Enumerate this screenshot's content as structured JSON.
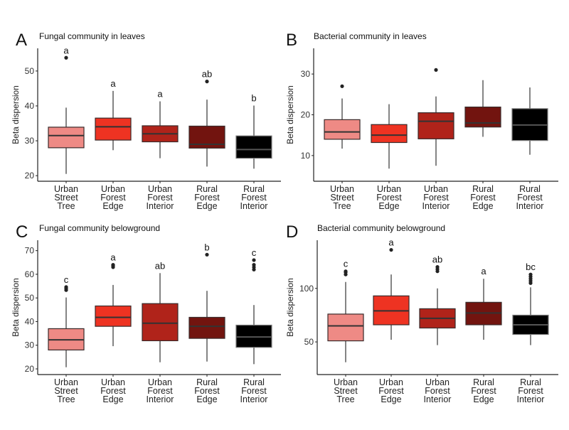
{
  "chart_data": [
    {
      "type": "box",
      "panel_label": "A",
      "title": "Fungal community in leaves",
      "ylabel": "Beta dispersion",
      "xlabel": "",
      "ylim": [
        18.4,
        56.5
      ],
      "yticks": [
        20,
        30,
        40,
        50
      ],
      "categories": [
        [
          "Urban",
          "Street",
          "Tree"
        ],
        [
          "Urban",
          "Forest",
          "Edge"
        ],
        [
          "Urban",
          "Forest",
          "Interior"
        ],
        [
          "Rural",
          "Forest",
          "Edge"
        ],
        [
          "Rural",
          "Forest",
          "Interior"
        ]
      ],
      "colors": [
        "#EE8A85",
        "#EE3322",
        "#B0231A",
        "#72140F",
        "#000000"
      ],
      "boxes": [
        {
          "min": 20.5,
          "q1": 28.0,
          "median": 31.5,
          "q3": 33.9,
          "max": 39.5,
          "outliers": [
            53.8
          ],
          "letter": "a"
        },
        {
          "min": 27.3,
          "q1": 30.2,
          "median": 34.0,
          "q3": 36.5,
          "max": 44.3,
          "outliers": [],
          "letter": "a"
        },
        {
          "min": 25.0,
          "q1": 29.7,
          "median": 32.0,
          "q3": 34.3,
          "max": 41.3,
          "outliers": [],
          "letter": "a"
        },
        {
          "min": 22.6,
          "q1": 27.9,
          "median": 29.0,
          "q3": 34.2,
          "max": 41.8,
          "outliers": [
            47.0
          ],
          "letter": "ab"
        },
        {
          "min": 22.0,
          "q1": 25.0,
          "median": 27.5,
          "q3": 31.4,
          "max": 40.1,
          "outliers": [],
          "letter": "b"
        }
      ]
    },
    {
      "type": "box",
      "panel_label": "B",
      "title": "Bacterial community in leaves",
      "ylabel": "Beta dispersion",
      "xlabel": "",
      "ylim": [
        3.7,
        36.3
      ],
      "yticks": [
        10,
        20,
        30
      ],
      "categories": [
        [
          "Urban",
          "Street",
          "Tree"
        ],
        [
          "Urban",
          "Forest",
          "Edge"
        ],
        [
          "Urban",
          "Forest",
          "Interior"
        ],
        [
          "Rural",
          "Forest",
          "Edge"
        ],
        [
          "Rural",
          "Forest",
          "Interior"
        ]
      ],
      "colors": [
        "#EE8A85",
        "#EE3322",
        "#B0231A",
        "#72140F",
        "#000000"
      ],
      "boxes": [
        {
          "min": 11.7,
          "q1": 14.0,
          "median": 15.8,
          "q3": 18.8,
          "max": 24.0,
          "outliers": [
            27.0
          ],
          "letter": ""
        },
        {
          "min": 6.8,
          "q1": 13.2,
          "median": 15.0,
          "q3": 17.6,
          "max": 22.6,
          "outliers": [],
          "letter": ""
        },
        {
          "min": 7.5,
          "q1": 14.1,
          "median": 18.4,
          "q3": 20.5,
          "max": 24.5,
          "outliers": [
            31.0
          ],
          "letter": ""
        },
        {
          "min": 14.6,
          "q1": 17.0,
          "median": 18.0,
          "q3": 21.9,
          "max": 28.5,
          "outliers": [],
          "letter": ""
        },
        {
          "min": 10.2,
          "q1": 13.7,
          "median": 17.5,
          "q3": 21.5,
          "max": 26.7,
          "outliers": [],
          "letter": ""
        }
      ]
    },
    {
      "type": "box",
      "panel_label": "C",
      "title": "Fungal community belowground",
      "ylabel": "Beta dispersion",
      "xlabel": "",
      "ylim": [
        17.6,
        74.4
      ],
      "yticks": [
        20,
        30,
        40,
        50,
        60,
        70
      ],
      "categories": [
        [
          "Urban",
          "Street",
          "Tree"
        ],
        [
          "Urban",
          "Forest",
          "Edge"
        ],
        [
          "Urban",
          "Forest",
          "Interior"
        ],
        [
          "Rural",
          "Forest",
          "Edge"
        ],
        [
          "Rural",
          "Forest",
          "Interior"
        ]
      ],
      "colors": [
        "#EE8A85",
        "#EE3322",
        "#B0231A",
        "#72140F",
        "#000000"
      ],
      "boxes": [
        {
          "min": 20.7,
          "q1": 28.0,
          "median": 32.3,
          "q3": 37.0,
          "max": 50.2,
          "outliers": [
            53.3,
            54.0,
            54.6
          ],
          "letter": "c"
        },
        {
          "min": 29.6,
          "q1": 38.0,
          "median": 41.8,
          "q3": 46.6,
          "max": 55.5,
          "outliers": [
            63.0,
            63.6,
            64.0
          ],
          "letter": "a"
        },
        {
          "min": 22.8,
          "q1": 31.9,
          "median": 39.3,
          "q3": 47.6,
          "max": 60.5,
          "outliers": [],
          "letter": "ab"
        },
        {
          "min": 23.1,
          "q1": 32.9,
          "median": 38.0,
          "q3": 41.8,
          "max": 53.0,
          "outliers": [
            68.3
          ],
          "letter": "b"
        },
        {
          "min": 22.0,
          "q1": 29.1,
          "median": 33.5,
          "q3": 38.5,
          "max": 47.0,
          "outliers": [
            62.0,
            63.0,
            64.0,
            66.0
          ],
          "letter": "c"
        }
      ]
    },
    {
      "type": "box",
      "panel_label": "D",
      "title": "Bacterial community belowground",
      "ylabel": "Beta dispersion",
      "xlabel": "",
      "ylim": [
        19.5,
        145
      ],
      "yticks": [
        50,
        100
      ],
      "categories": [
        [
          "Urban",
          "Street",
          "Tree"
        ],
        [
          "Urban",
          "Forest",
          "Edge"
        ],
        [
          "Urban",
          "Forest",
          "Interior"
        ],
        [
          "Rural",
          "Forest",
          "Edge"
        ],
        [
          "Rural",
          "Forest",
          "Interior"
        ]
      ],
      "colors": [
        "#EE8A85",
        "#EE3322",
        "#B0231A",
        "#72140F",
        "#000000"
      ],
      "boxes": [
        {
          "min": 31,
          "q1": 51,
          "median": 65,
          "q3": 76,
          "max": 106,
          "outliers": [
            113,
            115,
            116
          ],
          "letter": "c"
        },
        {
          "min": 52,
          "q1": 66,
          "median": 79,
          "q3": 93,
          "max": 113,
          "outliers": [
            136
          ],
          "letter": "a"
        },
        {
          "min": 47,
          "q1": 63,
          "median": 72,
          "q3": 81,
          "max": 100,
          "outliers": [
            116,
            118,
            120
          ],
          "letter": "ab"
        },
        {
          "min": 52,
          "q1": 66,
          "median": 77,
          "q3": 87,
          "max": 109,
          "outliers": [],
          "letter": "a"
        },
        {
          "min": 47,
          "q1": 57,
          "median": 66,
          "q3": 75,
          "max": 101,
          "outliers": [
            105,
            107,
            109,
            111,
            113
          ],
          "letter": "bc"
        }
      ]
    }
  ]
}
